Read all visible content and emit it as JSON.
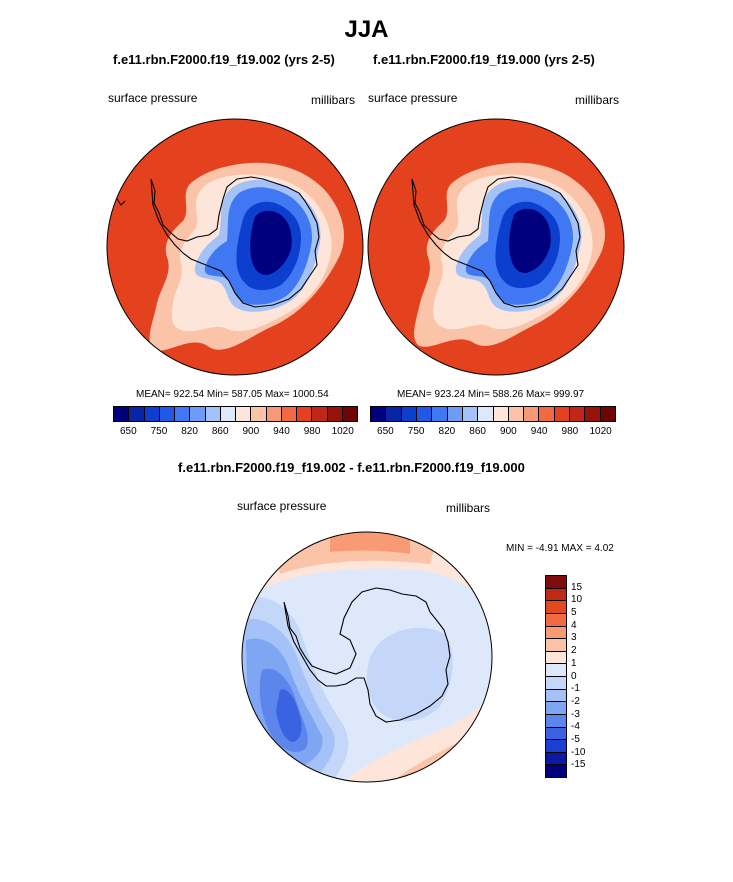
{
  "title": "JJA",
  "chart_data": [
    {
      "type": "heatmap",
      "projection": "south-polar-stereographic",
      "title": "f.e11.rbn.F2000.f19_f19.002 (yrs 2-5)",
      "left_label": "surface pressure",
      "right_label": "millibars",
      "stats": {
        "mean": "922.54",
        "min": "587.05",
        "max": "1000.54"
      },
      "stats_text": "MEAN= 922.54  Min= 587.05  Max= 1000.54",
      "colorbar": {
        "levels": [
          650,
          700,
          750,
          800,
          820,
          840,
          860,
          880,
          900,
          920,
          940,
          960,
          980,
          1000,
          1020
        ],
        "tick_labels": [
          "650",
          "750",
          "820",
          "860",
          "900",
          "940",
          "980",
          "1020"
        ],
        "colors": [
          "#00007f",
          "#0a24a8",
          "#0d3fcf",
          "#1f5ae6",
          "#3f78f2",
          "#6c9cf5",
          "#a4c2f7",
          "#dde8fb",
          "#fde6d9",
          "#fbc3a8",
          "#f79974",
          "#f26a43",
          "#e4421e",
          "#c0261a",
          "#961309",
          "#6e0405"
        ]
      }
    },
    {
      "type": "heatmap",
      "projection": "south-polar-stereographic",
      "title": "f.e11.rbn.F2000.f19_f19.000 (yrs 2-5)",
      "left_label": "surface pressure",
      "right_label": "millibars",
      "stats": {
        "mean": "923.24",
        "min": "588.26",
        "max": "999.97"
      },
      "stats_text": "MEAN= 923.24  Min= 588.26  Max= 999.97",
      "colorbar": {
        "levels": [
          650,
          700,
          750,
          800,
          820,
          840,
          860,
          880,
          900,
          920,
          940,
          960,
          980,
          1000,
          1020
        ],
        "tick_labels": [
          "650",
          "750",
          "820",
          "860",
          "900",
          "940",
          "980",
          "1020"
        ],
        "colors": [
          "#00007f",
          "#0a24a8",
          "#0d3fcf",
          "#1f5ae6",
          "#3f78f2",
          "#6c9cf5",
          "#a4c2f7",
          "#dde8fb",
          "#fde6d9",
          "#fbc3a8",
          "#f79974",
          "#f26a43",
          "#e4421e",
          "#c0261a",
          "#961309",
          "#6e0405"
        ]
      }
    },
    {
      "type": "heatmap",
      "projection": "south-polar-stereographic",
      "title": "f.e11.rbn.F2000.f19_f19.002 - f.e11.rbn.F2000.f19_f19.000",
      "left_label": "surface pressure",
      "right_label": "millibars",
      "stats": {
        "min": "-4.91",
        "max": "4.02"
      },
      "stats_text": "MIN =  -4.91 MAX =   4.02",
      "colorbar": {
        "levels": [
          15,
          10,
          5,
          4,
          3,
          2,
          1,
          0,
          -1,
          -2,
          -3,
          -4,
          -5,
          -10,
          -15
        ],
        "tick_labels": [
          "15",
          "10",
          "5",
          "4",
          "3",
          "2",
          "1",
          "0",
          "-1",
          "-2",
          "-3",
          "-4",
          "-5",
          "-10",
          "-15"
        ],
        "colors": [
          "#800d0d",
          "#c02a13",
          "#e04a1e",
          "#f26a43",
          "#f89a74",
          "#fbc3a8",
          "#fde6d9",
          "#dde8fb",
          "#c4d7f8",
          "#a4c2f7",
          "#7fa6f2",
          "#5c86ec",
          "#3a63e2",
          "#1d3fcf",
          "#0a1aa4",
          "#00007f"
        ]
      }
    }
  ]
}
